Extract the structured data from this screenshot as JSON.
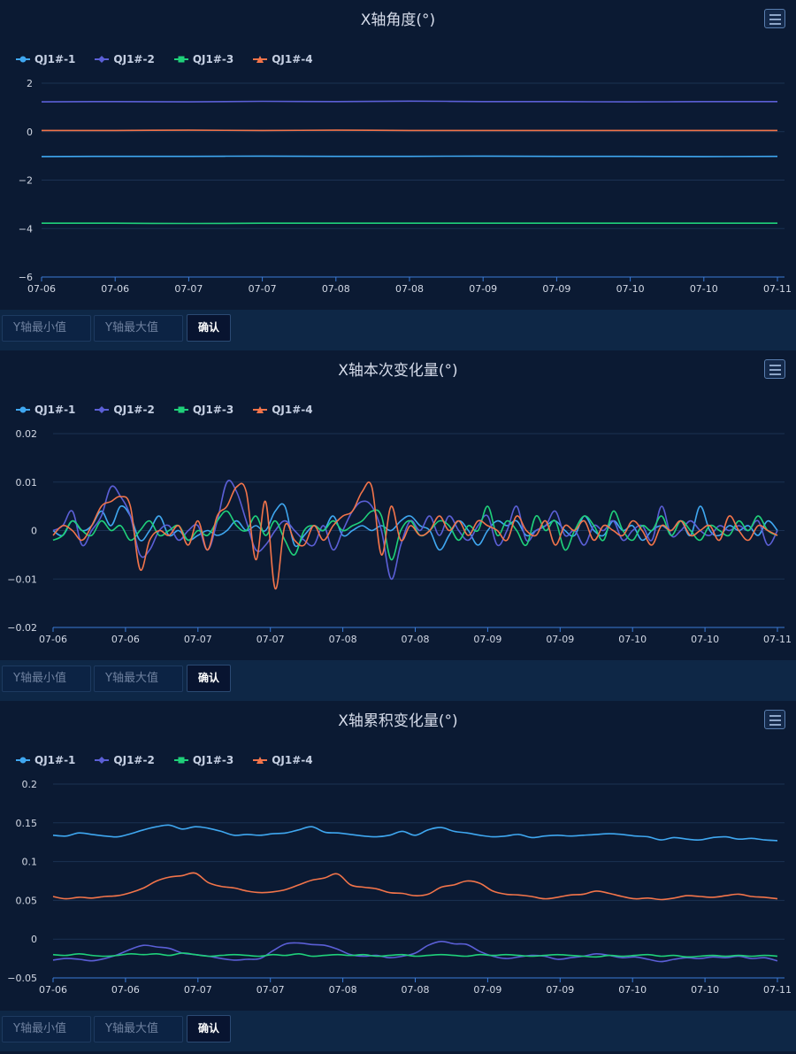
{
  "charts": [
    {
      "title": "X轴角度(°)",
      "controls": {
        "ymin_placeholder": "Y轴最小值",
        "ymax_placeholder": "Y轴最大值",
        "confirm_label": "确认"
      }
    },
    {
      "title": "X轴本次变化量(°)",
      "controls": {
        "ymin_placeholder": "Y轴最小值",
        "ymax_placeholder": "Y轴最大值",
        "confirm_label": "确认"
      }
    },
    {
      "title": "X轴累积变化量(°)",
      "controls": {
        "ymin_placeholder": "Y轴最小值",
        "ymax_placeholder": "Y轴最大值",
        "confirm_label": "确认"
      }
    }
  ],
  "legend": [
    {
      "name": "QJ1#-1",
      "color": "#3fa7f0",
      "marker": "circle"
    },
    {
      "name": "QJ1#-2",
      "color": "#5b5fd6",
      "marker": "diamond"
    },
    {
      "name": "QJ1#-3",
      "color": "#1fd07a",
      "marker": "square"
    },
    {
      "name": "QJ1#-4",
      "color": "#f2744a",
      "marker": "triangle"
    }
  ],
  "chart_data": [
    {
      "type": "line",
      "title": "X轴角度(°)",
      "x_ticks": [
        "07-06",
        "07-06",
        "07-07",
        "07-07",
        "07-08",
        "07-08",
        "07-09",
        "07-09",
        "07-10",
        "07-10",
        "07-11"
      ],
      "yticks": [
        "2",
        "0",
        "−2",
        "−4",
        "−6"
      ],
      "ylim": [
        -6,
        2
      ],
      "grid": true,
      "legend_position": "top-left",
      "series": [
        {
          "name": "QJ1#-1",
          "values": [
            -1.03,
            -1.02,
            -1.02,
            -1.01,
            -1.02,
            -1.02,
            -1.01,
            -1.02,
            -1.02,
            -1.03,
            -1.02
          ]
        },
        {
          "name": "QJ1#-2",
          "values": [
            1.23,
            1.24,
            1.23,
            1.25,
            1.24,
            1.26,
            1.24,
            1.24,
            1.23,
            1.24,
            1.24
          ]
        },
        {
          "name": "QJ1#-3",
          "values": [
            -3.78,
            -3.78,
            -3.79,
            -3.78,
            -3.78,
            -3.78,
            -3.78,
            -3.78,
            -3.78,
            -3.78,
            -3.78
          ]
        },
        {
          "name": "QJ1#-4",
          "values": [
            0.05,
            0.05,
            0.06,
            0.05,
            0.06,
            0.05,
            0.05,
            0.05,
            0.05,
            0.05,
            0.05
          ]
        }
      ]
    },
    {
      "type": "line",
      "title": "X轴本次变化量(°)",
      "x_ticks": [
        "07-06",
        "07-06",
        "07-07",
        "07-07",
        "07-08",
        "07-08",
        "07-09",
        "07-09",
        "07-10",
        "07-10",
        "07-11"
      ],
      "yticks": [
        "0.02",
        "0.01",
        "0",
        "−0.01",
        "−0.02"
      ],
      "ylim": [
        -0.02,
        0.02
      ],
      "grid": true,
      "legend_position": "top-left",
      "series": [
        {
          "name": "QJ1#-1",
          "values": [
            0,
            -0.001,
            0.002,
            0,
            0.001,
            0.004,
            0.001,
            0.005,
            0.003,
            -0.002,
            0,
            0.003,
            -0.001,
            0,
            -0.002,
            -0.001,
            0,
            -0.001,
            0,
            0.002,
            0,
            0.001,
            0,
            0.004,
            0.005,
            -0.003,
            -0.001,
            0.001,
            0,
            0.003,
            -0.001,
            0,
            0.001,
            0,
            0.001,
            0,
            0.002,
            0.003,
            0.001,
            0,
            -0.004,
            -0.001,
            0.002,
            0,
            -0.003,
            0,
            0.002,
            0.001,
            0.002,
            -0.001,
            0,
            0.001,
            0.002,
            0,
            -0.001,
            0.003,
            0,
            -0.001,
            0.002,
            0,
            0.001,
            -0.002,
            0,
            0.001,
            0,
            0.002,
            -0.001,
            0.005,
            0,
            -0.001,
            0.001,
            0,
            0.001,
            -0.001,
            0.002,
            0
          ]
        },
        {
          "name": "QJ1#-2",
          "values": [
            0,
            0.001,
            0.004,
            -0.003,
            0,
            0.003,
            0.009,
            0.007,
            0.003,
            -0.005,
            -0.004,
            0,
            0.001,
            -0.002,
            0,
            0.001,
            -0.004,
            0.002,
            0.01,
            0.008,
            0.002,
            -0.004,
            -0.003,
            0,
            0.002,
            0,
            -0.002,
            -0.003,
            0.001,
            -0.004,
            0,
            0.004,
            0.006,
            0.005,
            0,
            -0.01,
            -0.003,
            0.002,
            0,
            0.003,
            -0.001,
            0.003,
            0,
            -0.002,
            0.001,
            0.003,
            -0.003,
            0,
            0.005,
            -0.002,
            0,
            0.001,
            0.004,
            -0.001,
            0,
            -0.003,
            0.001,
            0,
            0.002,
            -0.002,
            0,
            0.001,
            -0.002,
            0.005,
            -0.001,
            0,
            0.002,
            0,
            -0.001,
            0.001,
            0,
            0.001,
            0,
            0.002,
            -0.003,
            0
          ]
        },
        {
          "name": "QJ1#-3",
          "values": [
            -0.002,
            -0.001,
            0.002,
            0,
            -0.001,
            0.002,
            0,
            0.001,
            -0.002,
            0,
            0.002,
            -0.001,
            0,
            0.001,
            -0.002,
            0,
            -0.001,
            0.002,
            0.004,
            0.001,
            0,
            0.003,
            -0.001,
            0.002,
            -0.002,
            -0.005,
            0,
            0.001,
            0,
            0.002,
            0,
            0.001,
            0.002,
            0.004,
            0.003,
            -0.006,
            0,
            0.002,
            -0.001,
            0,
            0.002,
            0.001,
            -0.002,
            0.001,
            0,
            0.005,
            -0.001,
            0.002,
            0,
            -0.003,
            0.003,
            0,
            0.002,
            -0.004,
            0,
            0.003,
            0.001,
            -0.002,
            0.004,
            0,
            -0.002,
            0.001,
            0,
            0.003,
            -0.001,
            0.002,
            0,
            -0.002,
            0.001,
            0,
            -0.001,
            0.002,
            0,
            0.003,
            0,
            -0.001
          ]
        },
        {
          "name": "QJ1#-4",
          "values": [
            -0.001,
            0.001,
            0,
            -0.002,
            0.001,
            0.005,
            0.006,
            0.007,
            0.005,
            -0.008,
            -0.002,
            0,
            -0.001,
            0.001,
            -0.003,
            0.002,
            -0.004,
            0.003,
            0.005,
            0.009,
            0.008,
            -0.006,
            0.006,
            -0.012,
            0.001,
            -0.002,
            -0.003,
            0.001,
            -0.002,
            0.001,
            0.003,
            0.004,
            0.008,
            0.009,
            -0.005,
            0.005,
            -0.002,
            0.001,
            -0.001,
            0,
            0.003,
            0,
            0.002,
            -0.001,
            0.002,
            0.001,
            0,
            -0.002,
            0.003,
            0,
            -0.001,
            0.002,
            -0.003,
            0.001,
            0,
            0.002,
            -0.002,
            0.001,
            0,
            -0.001,
            0.002,
            0,
            -0.003,
            0.001,
            0,
            0.002,
            -0.001,
            0,
            0.001,
            -0.002,
            0.003,
            0,
            -0.002,
            0.001,
            0,
            -0.001
          ]
        }
      ]
    },
    {
      "type": "line",
      "title": "X轴累积变化量(°)",
      "x_ticks": [
        "07-06",
        "07-06",
        "07-07",
        "07-07",
        "07-08",
        "07-08",
        "07-09",
        "07-09",
        "07-10",
        "07-10",
        "07-11"
      ],
      "yticks": [
        "0.2",
        "0.15",
        "0.1",
        "0.05",
        "0",
        "−0.05"
      ],
      "ylim": [
        -0.05,
        0.2
      ],
      "grid": true,
      "legend_position": "top-left",
      "series": [
        {
          "name": "QJ1#-1",
          "values": [
            0.134,
            0.133,
            0.137,
            0.135,
            0.133,
            0.132,
            0.136,
            0.141,
            0.145,
            0.147,
            0.142,
            0.145,
            0.143,
            0.139,
            0.134,
            0.135,
            0.134,
            0.136,
            0.137,
            0.141,
            0.145,
            0.138,
            0.137,
            0.135,
            0.133,
            0.132,
            0.134,
            0.139,
            0.134,
            0.141,
            0.144,
            0.139,
            0.137,
            0.134,
            0.132,
            0.133,
            0.135,
            0.131,
            0.133,
            0.134,
            0.133,
            0.134,
            0.135,
            0.136,
            0.135,
            0.133,
            0.132,
            0.128,
            0.131,
            0.129,
            0.128,
            0.131,
            0.132,
            0.129,
            0.13,
            0.128,
            0.127
          ]
        },
        {
          "name": "QJ1#-4",
          "values": [
            0.055,
            0.052,
            0.054,
            0.053,
            0.055,
            0.056,
            0.06,
            0.066,
            0.075,
            0.08,
            0.082,
            0.085,
            0.073,
            0.068,
            0.066,
            0.062,
            0.06,
            0.061,
            0.064,
            0.07,
            0.076,
            0.079,
            0.084,
            0.07,
            0.067,
            0.065,
            0.06,
            0.059,
            0.056,
            0.058,
            0.067,
            0.07,
            0.075,
            0.072,
            0.062,
            0.058,
            0.057,
            0.055,
            0.052,
            0.054,
            0.057,
            0.058,
            0.062,
            0.059,
            0.055,
            0.052,
            0.053,
            0.051,
            0.053,
            0.056,
            0.055,
            0.054,
            0.056,
            0.058,
            0.055,
            0.054,
            0.052
          ]
        },
        {
          "name": "QJ1#-2",
          "values": [
            -0.027,
            -0.025,
            -0.026,
            -0.028,
            -0.025,
            -0.02,
            -0.013,
            -0.008,
            -0.01,
            -0.012,
            -0.018,
            -0.02,
            -0.022,
            -0.025,
            -0.027,
            -0.026,
            -0.025,
            -0.015,
            -0.006,
            -0.005,
            -0.007,
            -0.008,
            -0.013,
            -0.02,
            -0.022,
            -0.021,
            -0.024,
            -0.022,
            -0.018,
            -0.008,
            -0.003,
            -0.006,
            -0.007,
            -0.016,
            -0.022,
            -0.025,
            -0.023,
            -0.021,
            -0.022,
            -0.026,
            -0.024,
            -0.022,
            -0.019,
            -0.021,
            -0.024,
            -0.023,
            -0.026,
            -0.029,
            -0.026,
            -0.024,
            -0.025,
            -0.023,
            -0.024,
            -0.022,
            -0.025,
            -0.024,
            -0.028
          ]
        },
        {
          "name": "QJ1#-3",
          "values": [
            -0.02,
            -0.021,
            -0.019,
            -0.021,
            -0.022,
            -0.021,
            -0.019,
            -0.02,
            -0.019,
            -0.021,
            -0.018,
            -0.02,
            -0.022,
            -0.021,
            -0.02,
            -0.021,
            -0.022,
            -0.02,
            -0.021,
            -0.019,
            -0.022,
            -0.021,
            -0.02,
            -0.021,
            -0.02,
            -0.022,
            -0.021,
            -0.02,
            -0.022,
            -0.021,
            -0.02,
            -0.021,
            -0.022,
            -0.02,
            -0.021,
            -0.02,
            -0.021,
            -0.022,
            -0.021,
            -0.02,
            -0.021,
            -0.022,
            -0.023,
            -0.021,
            -0.022,
            -0.021,
            -0.02,
            -0.022,
            -0.021,
            -0.023,
            -0.022,
            -0.021,
            -0.022,
            -0.021,
            -0.022,
            -0.021,
            -0.022
          ]
        }
      ]
    }
  ]
}
